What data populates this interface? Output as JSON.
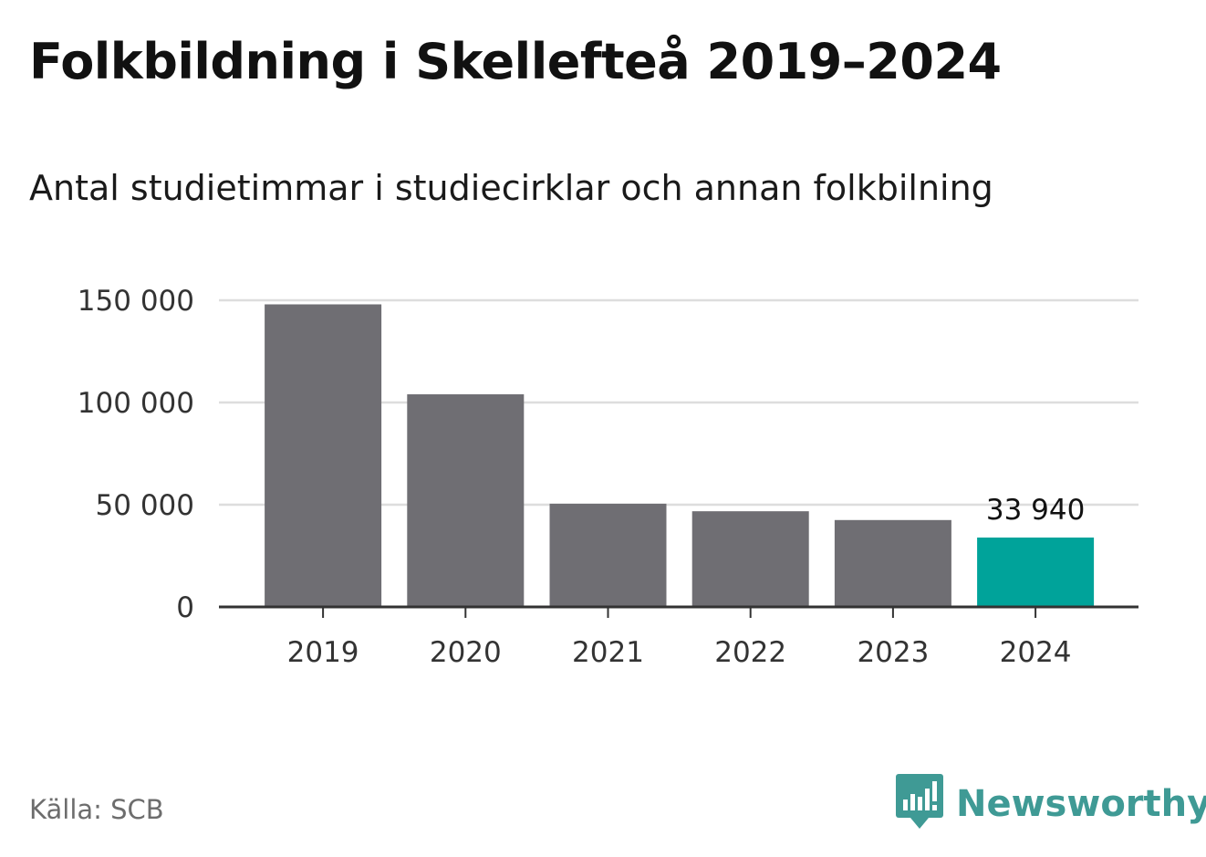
{
  "header": {
    "title": "Folkbildning i Skellefteå 2019–2024",
    "subtitle": "Antal studietimmar i studiecirklar och annan folkbilning"
  },
  "footer": {
    "source": "Källa: SCB",
    "brand": "Newsworthy",
    "brand_icon": "bar-chart-speech-bubble-icon"
  },
  "colors": {
    "bar": "#6f6e73",
    "highlight": "#00a39a",
    "grid": "#dddddd",
    "axis": "#333333",
    "brand": "#3f9a95"
  },
  "chart_data": {
    "type": "bar",
    "categories": [
      "2019",
      "2020",
      "2021",
      "2022",
      "2023",
      "2024"
    ],
    "values": [
      148000,
      104000,
      50500,
      46800,
      42500,
      33940
    ],
    "highlight_index": 5,
    "data_labels": [
      {
        "category": "2024",
        "text": "33 940"
      }
    ],
    "yticks": [
      {
        "value": 0,
        "label": "0"
      },
      {
        "value": 50000,
        "label": "50 000"
      },
      {
        "value": 100000,
        "label": "100 000"
      },
      {
        "value": 150000,
        "label": "150 000"
      }
    ],
    "ylim": [
      0,
      150000
    ],
    "xlabel": "",
    "ylabel": "",
    "grid": true
  }
}
